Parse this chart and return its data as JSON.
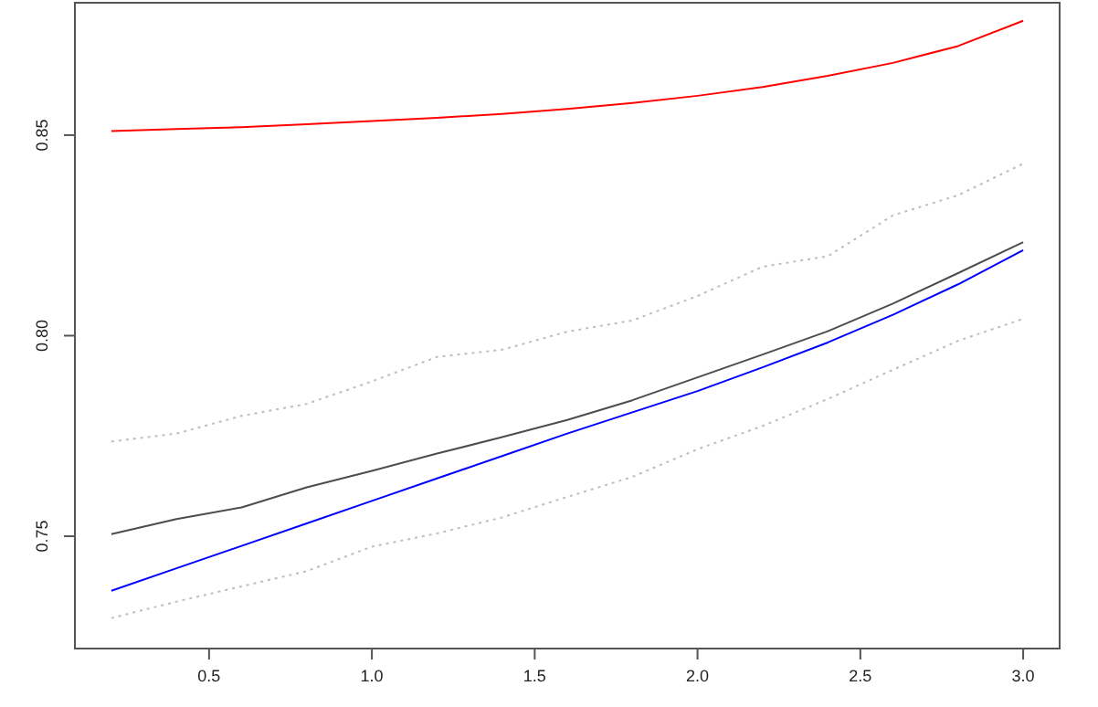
{
  "chart_data": {
    "type": "line",
    "x": [
      0.2,
      0.4,
      0.6,
      0.8,
      1.0,
      1.2,
      1.4,
      1.6,
      1.8,
      2.0,
      2.2,
      2.4,
      2.6,
      2.8,
      3.0
    ],
    "xlim": [
      0.088,
      3.112
    ],
    "xticks": [
      {
        "value": 0.5,
        "label": "0.5"
      },
      {
        "value": 1,
        "label": "1.0"
      },
      {
        "value": 1.5,
        "label": "1.5"
      },
      {
        "value": 2,
        "label": "2.0"
      },
      {
        "value": 2.5,
        "label": "2.5"
      },
      {
        "value": 3,
        "label": "3.0"
      }
    ],
    "ylim": [
      0.722,
      0.883
    ],
    "yticks": [
      {
        "value": 0.75,
        "label": "0.75"
      },
      {
        "value": 0.8,
        "label": "0.80"
      },
      {
        "value": 0.85,
        "label": "0.85"
      }
    ],
    "grid": false,
    "series": [
      {
        "color": "#ff0000",
        "line_style": "solid",
        "values": [
          0.851,
          0.8515,
          0.852,
          0.8527,
          0.8535,
          0.8543,
          0.8553,
          0.8565,
          0.858,
          0.8598,
          0.862,
          0.8648,
          0.868,
          0.8722,
          0.8785
        ]
      },
      {
        "color": "#bebebe",
        "line_style": "dotted",
        "values": [
          0.7736,
          0.7756,
          0.78,
          0.783,
          0.7886,
          0.7947,
          0.7965,
          0.801,
          0.8038,
          0.8099,
          0.8172,
          0.8198,
          0.83,
          0.835,
          0.8429
        ]
      },
      {
        "color": "#4d4d4d",
        "line_style": "solid",
        "values": [
          0.7505,
          0.7543,
          0.7572,
          0.7622,
          0.7663,
          0.7706,
          0.7747,
          0.779,
          0.7839,
          0.7896,
          0.7953,
          0.8011,
          0.808,
          0.8156,
          0.8233
        ]
      },
      {
        "color": "#0000ff",
        "line_style": "solid",
        "values": [
          0.7364,
          0.742,
          0.7476,
          0.7532,
          0.7588,
          0.7644,
          0.77,
          0.7756,
          0.7809,
          0.7862,
          0.7921,
          0.7983,
          0.8052,
          0.8128,
          0.8213
        ]
      },
      {
        "color": "#bebebe",
        "line_style": "dotted",
        "values": [
          0.7296,
          0.7337,
          0.7375,
          0.7413,
          0.7474,
          0.7507,
          0.7547,
          0.7598,
          0.7648,
          0.7717,
          0.7775,
          0.7842,
          0.7915,
          0.7987,
          0.8042
        ]
      }
    ]
  }
}
